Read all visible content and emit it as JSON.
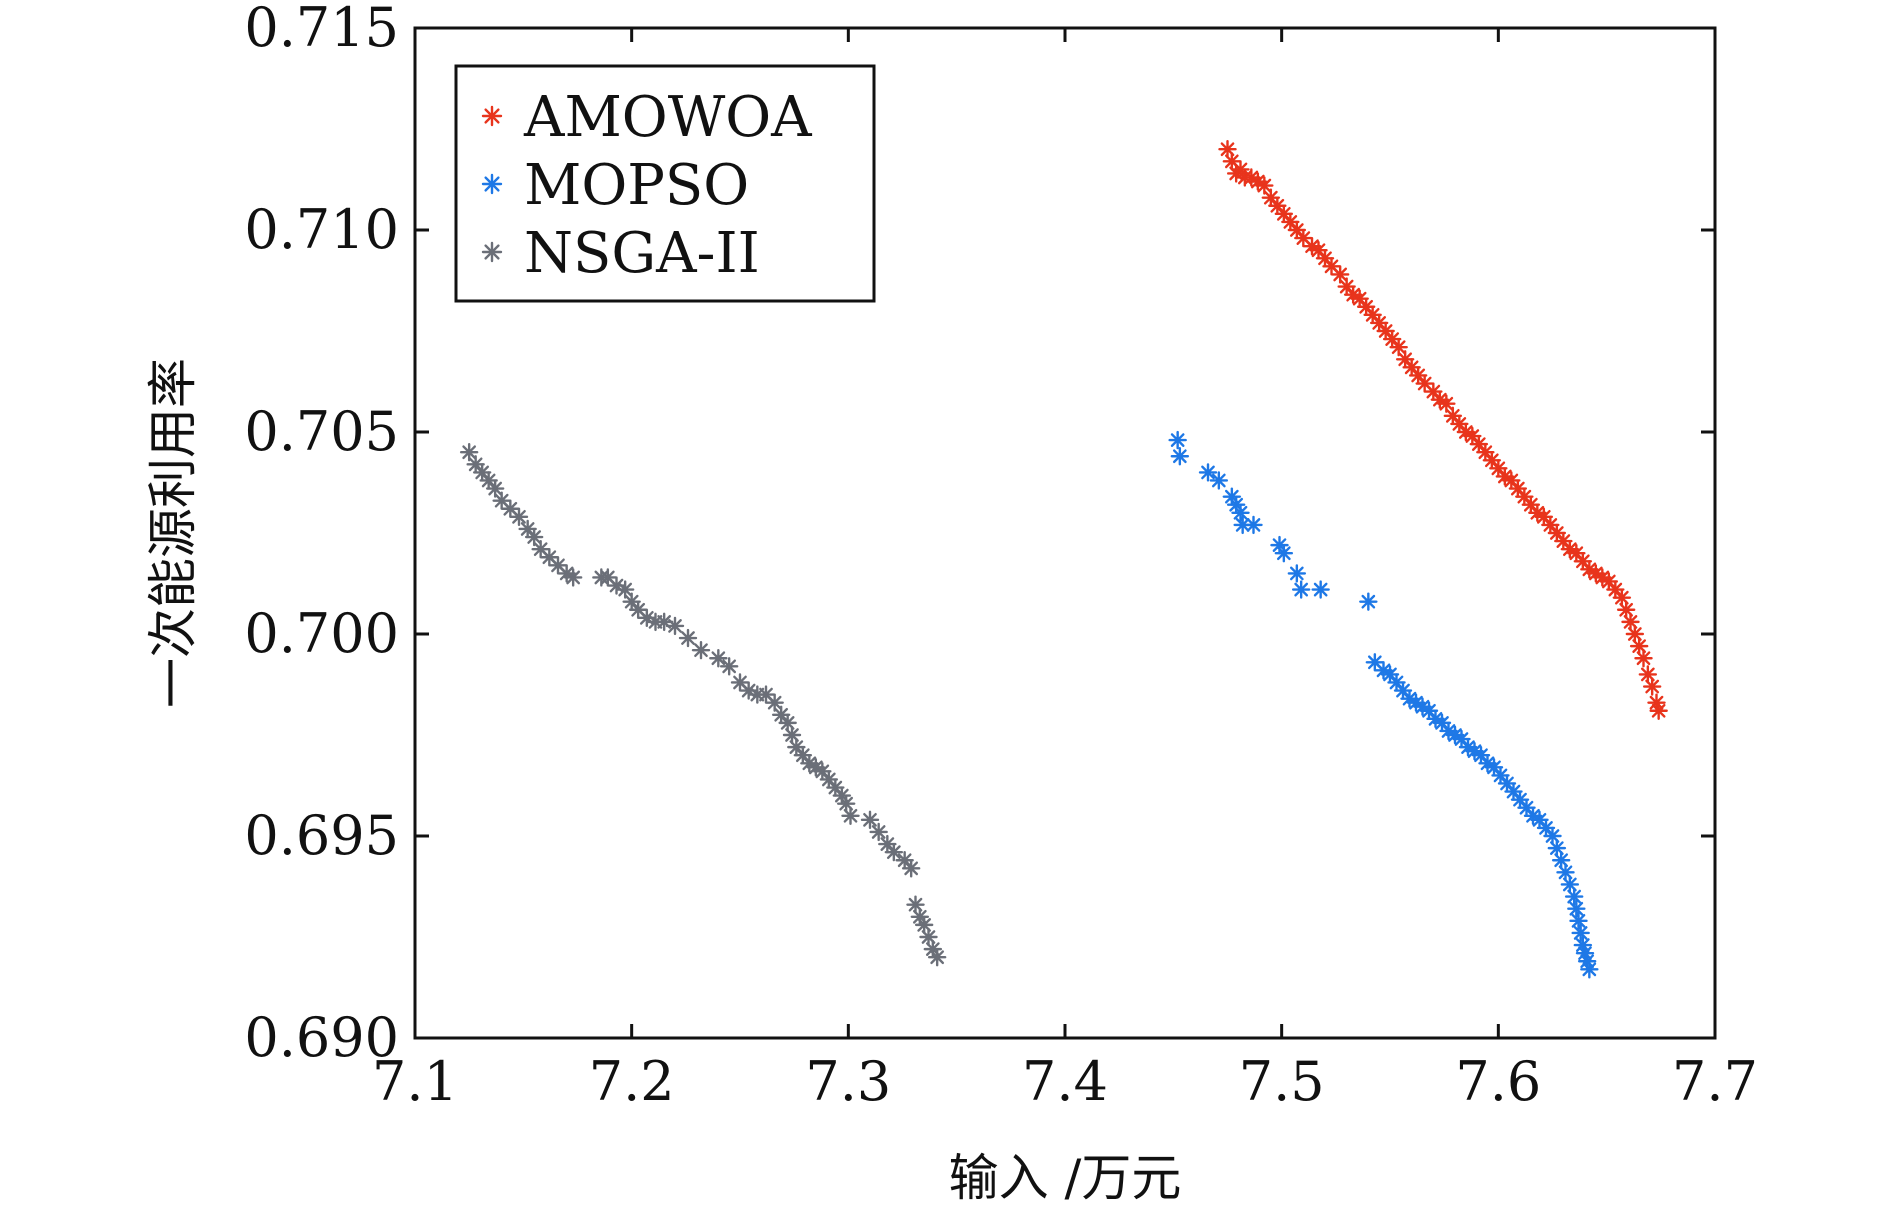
{
  "chart_data": {
    "type": "scatter",
    "xlabel": "输入 /万元",
    "ylabel": "一次能源利用率",
    "xlim": [
      7.1,
      7.7
    ],
    "ylim": [
      0.69,
      0.715
    ],
    "xticks": [
      7.1,
      7.2,
      7.3,
      7.4,
      7.5,
      7.6,
      7.7
    ],
    "xtick_labels": [
      "7.1",
      "7.2",
      "7.3",
      "7.4",
      "7.5",
      "7.6",
      "7.7"
    ],
    "yticks": [
      0.69,
      0.695,
      0.7,
      0.705,
      0.71,
      0.715
    ],
    "ytick_labels": [
      "0.690",
      "0.695",
      "0.700",
      "0.705",
      "0.710",
      "0.715"
    ],
    "grid": false,
    "legend_position": "top-left",
    "marker": "asterisk",
    "series": [
      {
        "name": "AMOWOA",
        "color": "#e8341c",
        "points": [
          [
            7.475,
            0.712
          ],
          [
            7.477,
            0.7117
          ],
          [
            7.479,
            0.7114
          ],
          [
            7.481,
            0.7115
          ],
          [
            7.483,
            0.7113
          ],
          [
            7.486,
            0.7113
          ],
          [
            7.489,
            0.7112
          ],
          [
            7.492,
            0.7111
          ],
          [
            7.495,
            0.7108
          ],
          [
            7.498,
            0.7106
          ],
          [
            7.501,
            0.7104
          ],
          [
            7.504,
            0.7102
          ],
          [
            7.507,
            0.71
          ],
          [
            7.51,
            0.7098
          ],
          [
            7.514,
            0.7096
          ],
          [
            7.517,
            0.7095
          ],
          [
            7.52,
            0.7093
          ],
          [
            7.523,
            0.7091
          ],
          [
            7.527,
            0.7089
          ],
          [
            7.53,
            0.7086
          ],
          [
            7.533,
            0.7084
          ],
          [
            7.536,
            0.7083
          ],
          [
            7.539,
            0.7081
          ],
          [
            7.542,
            0.7079
          ],
          [
            7.545,
            0.7077
          ],
          [
            7.548,
            0.7075
          ],
          [
            7.551,
            0.7073
          ],
          [
            7.554,
            0.7071
          ],
          [
            7.557,
            0.7068
          ],
          [
            7.56,
            0.7066
          ],
          [
            7.563,
            0.7064
          ],
          [
            7.566,
            0.7062
          ],
          [
            7.57,
            0.706
          ],
          [
            7.573,
            0.7058
          ],
          [
            7.576,
            0.7057
          ],
          [
            7.579,
            0.7054
          ],
          [
            7.582,
            0.7052
          ],
          [
            7.585,
            0.705
          ],
          [
            7.588,
            0.7049
          ],
          [
            7.591,
            0.7047
          ],
          [
            7.594,
            0.7045
          ],
          [
            7.597,
            0.7043
          ],
          [
            7.6,
            0.7041
          ],
          [
            7.603,
            0.7039
          ],
          [
            7.606,
            0.7038
          ],
          [
            7.609,
            0.7036
          ],
          [
            7.612,
            0.7034
          ],
          [
            7.615,
            0.7032
          ],
          [
            7.618,
            0.703
          ],
          [
            7.621,
            0.7029
          ],
          [
            7.624,
            0.7027
          ],
          [
            7.627,
            0.7025
          ],
          [
            7.63,
            0.7023
          ],
          [
            7.633,
            0.7021
          ],
          [
            7.636,
            0.702
          ],
          [
            7.639,
            0.7018
          ],
          [
            7.642,
            0.7016
          ],
          [
            7.645,
            0.7015
          ],
          [
            7.648,
            0.7014
          ],
          [
            7.651,
            0.7013
          ],
          [
            7.654,
            0.7011
          ],
          [
            7.657,
            0.7009
          ],
          [
            7.659,
            0.7006
          ],
          [
            7.661,
            0.7003
          ],
          [
            7.663,
            0.7
          ],
          [
            7.665,
            0.6997
          ],
          [
            7.667,
            0.6994
          ],
          [
            7.669,
            0.699
          ],
          [
            7.671,
            0.6987
          ],
          [
            7.673,
            0.6983
          ],
          [
            7.674,
            0.6981
          ]
        ]
      },
      {
        "name": "MOPSO",
        "color": "#1e78e6",
        "points": [
          [
            7.452,
            0.7048
          ],
          [
            7.453,
            0.7044
          ],
          [
            7.466,
            0.704
          ],
          [
            7.471,
            0.7038
          ],
          [
            7.477,
            0.7034
          ],
          [
            7.479,
            0.7032
          ],
          [
            7.481,
            0.703
          ],
          [
            7.482,
            0.7027
          ],
          [
            7.487,
            0.7027
          ],
          [
            7.499,
            0.7022
          ],
          [
            7.501,
            0.702
          ],
          [
            7.507,
            0.7015
          ],
          [
            7.509,
            0.7011
          ],
          [
            7.518,
            0.7011
          ],
          [
            7.54,
            0.7008
          ],
          [
            7.543,
            0.6993
          ],
          [
            7.547,
            0.6991
          ],
          [
            7.55,
            0.699
          ],
          [
            7.553,
            0.6988
          ],
          [
            7.556,
            0.6986
          ],
          [
            7.559,
            0.6984
          ],
          [
            7.562,
            0.6983
          ],
          [
            7.565,
            0.6982
          ],
          [
            7.568,
            0.6981
          ],
          [
            7.571,
            0.6979
          ],
          [
            7.574,
            0.6978
          ],
          [
            7.577,
            0.6976
          ],
          [
            7.58,
            0.6975
          ],
          [
            7.583,
            0.6974
          ],
          [
            7.586,
            0.6972
          ],
          [
            7.589,
            0.6971
          ],
          [
            7.592,
            0.697
          ],
          [
            7.595,
            0.6968
          ],
          [
            7.598,
            0.6967
          ],
          [
            7.601,
            0.6965
          ],
          [
            7.604,
            0.6963
          ],
          [
            7.607,
            0.6961
          ],
          [
            7.61,
            0.6959
          ],
          [
            7.613,
            0.6957
          ],
          [
            7.616,
            0.6955
          ],
          [
            7.619,
            0.6954
          ],
          [
            7.622,
            0.6952
          ],
          [
            7.625,
            0.695
          ],
          [
            7.627,
            0.6947
          ],
          [
            7.629,
            0.6944
          ],
          [
            7.631,
            0.6941
          ],
          [
            7.633,
            0.6938
          ],
          [
            7.635,
            0.6935
          ],
          [
            7.636,
            0.6932
          ],
          [
            7.637,
            0.6929
          ],
          [
            7.638,
            0.6926
          ],
          [
            7.639,
            0.6923
          ],
          [
            7.64,
            0.6921
          ],
          [
            7.641,
            0.6919
          ],
          [
            7.642,
            0.6917
          ]
        ]
      },
      {
        "name": "NSGA-II",
        "color": "#6b6f78",
        "points": [
          [
            7.125,
            0.7045
          ],
          [
            7.128,
            0.7042
          ],
          [
            7.131,
            0.704
          ],
          [
            7.134,
            0.7038
          ],
          [
            7.137,
            0.7036
          ],
          [
            7.14,
            0.7033
          ],
          [
            7.144,
            0.7031
          ],
          [
            7.148,
            0.7029
          ],
          [
            7.152,
            0.7026
          ],
          [
            7.155,
            0.7024
          ],
          [
            7.158,
            0.7021
          ],
          [
            7.162,
            0.7019
          ],
          [
            7.166,
            0.7017
          ],
          [
            7.17,
            0.7015
          ],
          [
            7.173,
            0.7014
          ],
          [
            7.186,
            0.7014
          ],
          [
            7.189,
            0.7014
          ],
          [
            7.193,
            0.7012
          ],
          [
            7.197,
            0.7011
          ],
          [
            7.2,
            0.7008
          ],
          [
            7.203,
            0.7006
          ],
          [
            7.207,
            0.7004
          ],
          [
            7.211,
            0.7003
          ],
          [
            7.215,
            0.7003
          ],
          [
            7.22,
            0.7002
          ],
          [
            7.226,
            0.6999
          ],
          [
            7.232,
            0.6996
          ],
          [
            7.24,
            0.6994
          ],
          [
            7.245,
            0.6992
          ],
          [
            7.25,
            0.6988
          ],
          [
            7.254,
            0.6986
          ],
          [
            7.258,
            0.6985
          ],
          [
            7.262,
            0.6985
          ],
          [
            7.266,
            0.6983
          ],
          [
            7.269,
            0.698
          ],
          [
            7.272,
            0.6978
          ],
          [
            7.274,
            0.6975
          ],
          [
            7.276,
            0.6972
          ],
          [
            7.279,
            0.697
          ],
          [
            7.282,
            0.6968
          ],
          [
            7.285,
            0.6967
          ],
          [
            7.288,
            0.6966
          ],
          [
            7.291,
            0.6964
          ],
          [
            7.294,
            0.6962
          ],
          [
            7.297,
            0.696
          ],
          [
            7.299,
            0.6958
          ],
          [
            7.301,
            0.6955
          ],
          [
            7.31,
            0.6954
          ],
          [
            7.314,
            0.6951
          ],
          [
            7.318,
            0.6948
          ],
          [
            7.321,
            0.6946
          ],
          [
            7.326,
            0.6944
          ],
          [
            7.329,
            0.6942
          ],
          [
            7.331,
            0.6933
          ],
          [
            7.333,
            0.693
          ],
          [
            7.335,
            0.6928
          ],
          [
            7.337,
            0.6925
          ],
          [
            7.339,
            0.6922
          ],
          [
            7.341,
            0.692
          ]
        ]
      }
    ]
  }
}
